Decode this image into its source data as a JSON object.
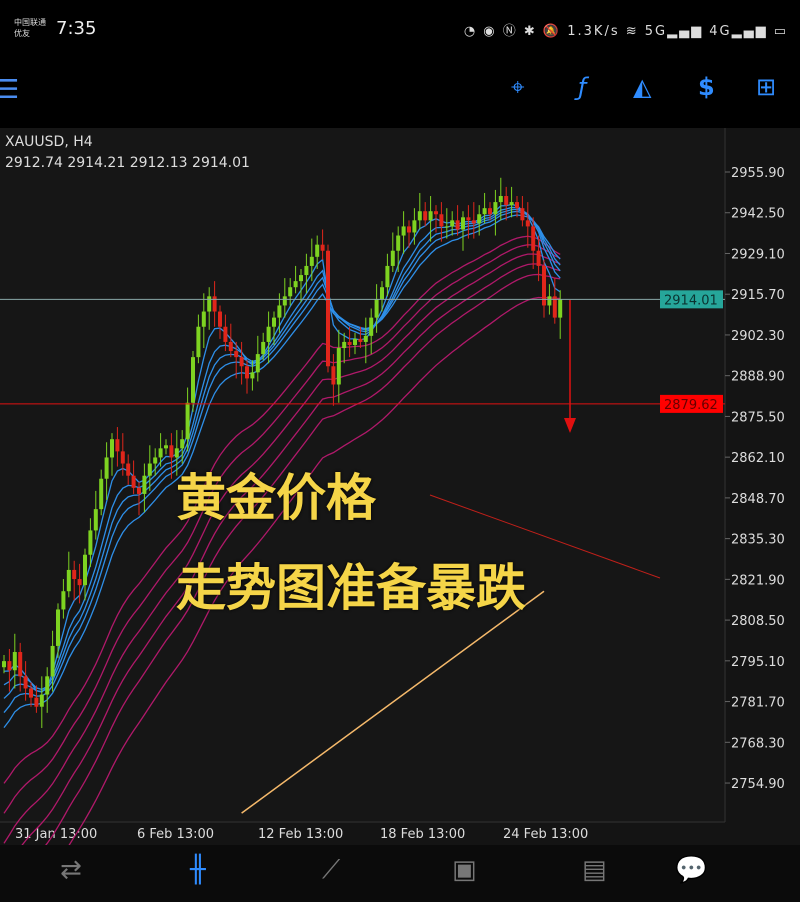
{
  "status_bar": {
    "carrier_line1": "中国联通",
    "carrier_line2": "优友",
    "time": "7:35",
    "icons": "◔ ◉ Ⓝ ✱ 🔕 1.3K/s ≋ 5G▂▄▆ 4G▂▄▆ ▭"
  },
  "toolbar": {
    "menu_icon": "☰",
    "crosshair": "⌖",
    "indicators": "ƒ",
    "objects": "◭",
    "trade": "$",
    "new_order": "⊞"
  },
  "chart": {
    "symbol": "XAUUSD, H4",
    "ohlc": "2912.74 2914.21 2912.13 2914.01",
    "overlay_line1": "黄金价格",
    "overlay_line2": "走势图准备暴跌",
    "colors": {
      "bull": "#7ed321",
      "bear": "#e0261b",
      "fast_ma": "#2e8fe8",
      "slow_ma": "#b0196a",
      "long_ma": "#f5b96b",
      "bid_line": "#8aa8a8",
      "level_line": "#e01010"
    }
  },
  "chart_data": {
    "type": "candlestick",
    "symbol": "XAUUSD",
    "timeframe": "H4",
    "ylim": [
      2745,
      2965
    ],
    "y_ticks": [
      2955.9,
      2942.5,
      2929.1,
      2915.7,
      2902.3,
      2888.9,
      2875.5,
      2862.1,
      2848.7,
      2835.3,
      2821.9,
      2808.5,
      2795.1,
      2781.7,
      2768.3,
      2754.9
    ],
    "x_ticks": [
      "31 Jan 13:00",
      "6 Feb 13:00",
      "12 Feb 13:00",
      "18 Feb 13:00",
      "24 Feb 13:00"
    ],
    "closes": [
      2795,
      2792,
      2798,
      2790,
      2786,
      2783,
      2780,
      2784,
      2790,
      2800,
      2812,
      2818,
      2825,
      2822,
      2820,
      2830,
      2838,
      2845,
      2855,
      2862,
      2868,
      2864,
      2860,
      2856,
      2852,
      2850,
      2856,
      2860,
      2862,
      2865,
      2866,
      2862,
      2865,
      2868,
      2880,
      2895,
      2905,
      2910,
      2915,
      2910,
      2905,
      2900,
      2897,
      2895,
      2892,
      2888,
      2890,
      2896,
      2900,
      2905,
      2908,
      2912,
      2915,
      2918,
      2920,
      2922,
      2925,
      2928,
      2932,
      2930,
      2892,
      2886,
      2898,
      2900,
      2899,
      2901,
      2900,
      2902,
      2908,
      2914,
      2918,
      2925,
      2930,
      2935,
      2938,
      2936,
      2940,
      2943,
      2940,
      2943,
      2942,
      2938,
      2938,
      2940,
      2937,
      2941,
      2940,
      2939,
      2942,
      2944,
      2942,
      2946,
      2948,
      2945,
      2946,
      2944,
      2940,
      2938,
      2930,
      2925,
      2912,
      2915,
      2908,
      2914.01
    ],
    "current_price": "2914.01",
    "level_price": "2879.62",
    "long_ma": {
      "start": 2745,
      "end": 2818
    }
  },
  "nav": {
    "quotes": "⇄",
    "chart": "╫",
    "trade": "⟋",
    "history": "▣",
    "news": "▤",
    "messages": "💬"
  }
}
